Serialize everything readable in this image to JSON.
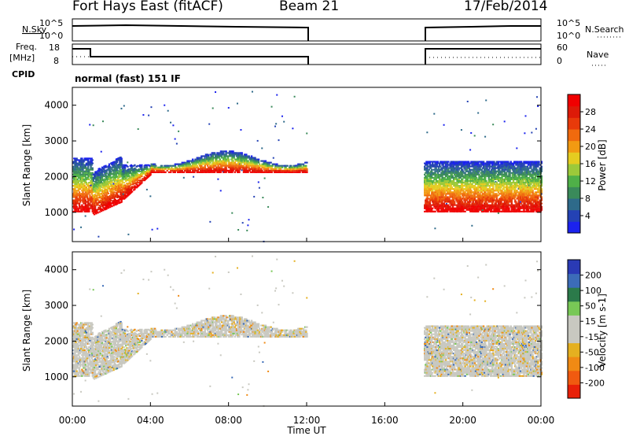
{
  "header": {
    "station": "Fort Hays East (fitACF)",
    "beam": "Beam 21",
    "date": "17/Feb/2014"
  },
  "noise_panel": {
    "left_label": "N.Sky",
    "right_label": "N.Search",
    "left_ticks": [
      "10^5",
      "10^0"
    ],
    "right_ticks": [
      "10^5",
      "10^0"
    ]
  },
  "freq_panel": {
    "left_label_line1": "Freq.",
    "left_label_line2": "[MHz]",
    "right_label": "Nave",
    "left_ticks": [
      "18",
      "8"
    ],
    "right_ticks": [
      "60",
      "0"
    ]
  },
  "cpid": {
    "label": "CPID",
    "mode": "normal (fast) 151 IF"
  },
  "time_axis": {
    "label": "Time UT",
    "ticks": [
      "00:00",
      "04:00",
      "08:00",
      "12:00",
      "16:00",
      "20:00",
      "00:00"
    ]
  },
  "chart_data": [
    {
      "type": "heatmap",
      "name": "power",
      "ylabel": "Slant Range [km]",
      "yticks": [
        "1000",
        "2000",
        "3000",
        "4000"
      ],
      "ylim": [
        180,
        4500
      ],
      "xlim": [
        0,
        24
      ],
      "data_gaps_hours": [
        [
          12,
          18
        ]
      ],
      "colorbar": {
        "label": "Power [dB]",
        "ticks": [
          "4",
          "8",
          "12",
          "16",
          "20",
          "24",
          "28"
        ],
        "colors": [
          "#1b22ee",
          "#2442b4",
          "#2e6a8a",
          "#3a8a5a",
          "#4fb048",
          "#9cc93a",
          "#e5cc20",
          "#f29a12",
          "#f06a0e",
          "#e83a0a",
          "#dd1a08",
          "#f00000"
        ]
      }
    },
    {
      "type": "heatmap",
      "name": "velocity",
      "ylabel": "Slant Range [km]",
      "yticks": [
        "1000",
        "2000",
        "3000",
        "4000"
      ],
      "ylim": [
        180,
        4500
      ],
      "xlim": [
        0,
        24
      ],
      "data_gaps_hours": [
        [
          12,
          18
        ]
      ],
      "colorbar": {
        "label": "Velocity [m s-1]",
        "ticks": [
          "200",
          "100",
          "50",
          "15",
          "-15",
          "-50",
          "-100",
          "-200"
        ],
        "colors": [
          "#2a3ab5",
          "#3c6cb8",
          "#2b7a4a",
          "#78c856",
          "#c8c8c0",
          "#c8c8c0",
          "#e5b020",
          "#f08a14",
          "#f05a10",
          "#e82008"
        ]
      }
    }
  ]
}
